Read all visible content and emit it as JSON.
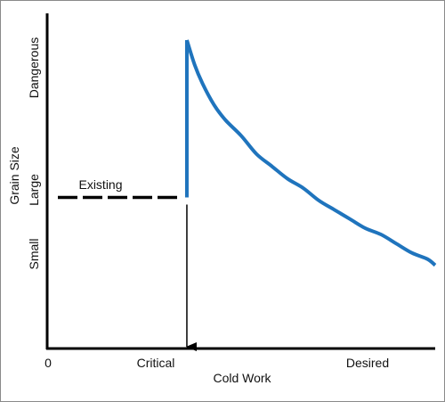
{
  "chart_data": {
    "type": "line",
    "title": "",
    "xlabel": "Cold Work",
    "ylabel": "Grain Size",
    "x_ticks": [
      "0",
      "Critical",
      "Desired"
    ],
    "y_ticks": [
      "Small",
      "Large",
      "Dangerous"
    ],
    "annotations": {
      "existing": "Existing"
    },
    "grid": false,
    "legend": "none",
    "colors": {
      "curve": "#1f74bd",
      "axis": "#000000",
      "existing_line": "#000000"
    },
    "xlim": [
      0,
      1
    ],
    "ylim": [
      0,
      1
    ],
    "critical_x": 0.36,
    "existing_y": 0.49,
    "curve": {
      "x": [
        0.36,
        0.38,
        0.4,
        0.43,
        0.46,
        0.5,
        0.54,
        0.58,
        0.62,
        0.66,
        0.7,
        0.74,
        0.78,
        0.82,
        0.86,
        0.9,
        0.94,
        0.98,
        1.0
      ],
      "y": [
        1.0,
        0.92,
        0.86,
        0.79,
        0.74,
        0.69,
        0.63,
        0.59,
        0.55,
        0.52,
        0.48,
        0.45,
        0.42,
        0.39,
        0.37,
        0.34,
        0.31,
        0.29,
        0.27
      ]
    }
  }
}
